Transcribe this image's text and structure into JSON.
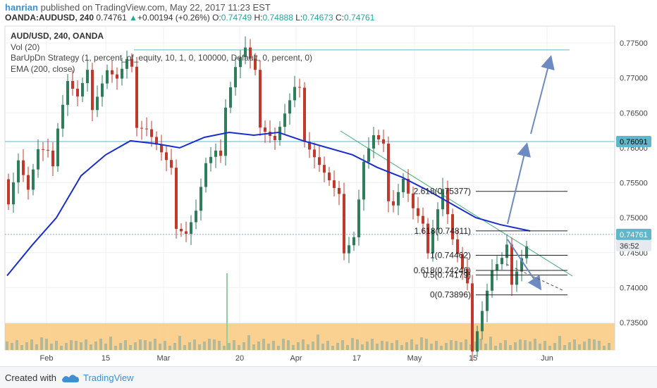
{
  "header": {
    "author": "hanrian",
    "published_text": "published on TradingView.com, May 22, 2017 11:23 EST",
    "symbol": "OANDA:AUDUSD, 240",
    "last": "0.74761",
    "change": "+0.00194 (+0.26%)",
    "o_label": "O:",
    "o_value": "0.74749",
    "h_label": "H:",
    "h_value": "0.74888",
    "l_label": "L:",
    "l_value": "0.74673",
    "c_label": "C:",
    "c_value": "0.74761",
    "up_arrow": "▲"
  },
  "legend": {
    "title": "AUD/USD, 240, OANDA",
    "vol": "Vol (20)",
    "strategy": "BarUpDn Strategy (1, percent_of_equity, 10, 1, 0, 100000, Default, 0, percent, 0)",
    "ema": "EMA (200, close)"
  },
  "footer": {
    "created_with": "Created with",
    "brand": "TradingView"
  },
  "colors": {
    "ema": "#1a2ecc",
    "candle_up": "#2e7d5b",
    "candle_down": "#c0392b",
    "volume_band": "#f9c97d",
    "horizontal_line": "#5fb8c9",
    "trendline": "#3daa74",
    "arrow": "#6d8bc2",
    "fib_line": "#222222",
    "price_badge": "#5fb8c9",
    "timer_badge": "#e6e9ee"
  },
  "chart_data": {
    "type": "candlestick",
    "x_ticks": [
      "Feb",
      "15",
      "Mar",
      "20",
      "Apr",
      "17",
      "May",
      "15",
      "Jun"
    ],
    "y_ticks": [
      "0.77500",
      "0.77000",
      "0.76500",
      "0.76000",
      "0.75500",
      "0.75000",
      "0.74500",
      "0.74000",
      "0.73500"
    ],
    "ylim": [
      0.731,
      0.7765
    ],
    "last_price_badge": "0.74761",
    "timer_badge": "36:52",
    "level_badge": "0.76091",
    "horizontal_levels": [
      0.7609,
      0.774
    ],
    "fib_levels": [
      {
        "label": "2.618(0.75377)",
        "value": 0.75377
      },
      {
        "label": "1.618(0.74811)",
        "value": 0.74811
      },
      {
        "label": "1(0.74462)",
        "value": 0.74462
      },
      {
        "label": "0.618(0.74246)",
        "value": 0.74246
      },
      {
        "label": "0.5(0.74179)",
        "value": 0.74179
      },
      {
        "label": "0(0.73896)",
        "value": 0.73896
      }
    ],
    "price_path": [
      [
        0,
        0.7555
      ],
      [
        2,
        0.76
      ],
      [
        4,
        0.754
      ],
      [
        6,
        0.758
      ],
      [
        8,
        0.756
      ],
      [
        10,
        0.765
      ],
      [
        12,
        0.77
      ],
      [
        14,
        0.766
      ],
      [
        16,
        0.768
      ],
      [
        18,
        0.77
      ],
      [
        20,
        0.772
      ],
      [
        22,
        0.769
      ],
      [
        24,
        0.77
      ],
      [
        26,
        0.766
      ],
      [
        28,
        0.764
      ],
      [
        30,
        0.76
      ],
      [
        32,
        0.756
      ],
      [
        34,
        0.752
      ],
      [
        36,
        0.7495
      ],
      [
        38,
        0.751
      ],
      [
        40,
        0.756
      ],
      [
        42,
        0.756
      ],
      [
        44,
        0.768
      ],
      [
        46,
        0.772
      ],
      [
        48,
        0.773
      ],
      [
        50,
        0.768
      ],
      [
        52,
        0.765
      ],
      [
        54,
        0.762
      ],
      [
        56,
        0.764
      ],
      [
        58,
        0.766
      ],
      [
        60,
        0.764
      ],
      [
        62,
        0.76
      ],
      [
        64,
        0.756
      ],
      [
        66,
        0.752
      ],
      [
        68,
        0.7485
      ],
      [
        70,
        0.749
      ],
      [
        72,
        0.758
      ],
      [
        74,
        0.76
      ],
      [
        76,
        0.757
      ],
      [
        78,
        0.754
      ],
      [
        80,
        0.756
      ],
      [
        82,
        0.75
      ],
      [
        84,
        0.746
      ],
      [
        86,
        0.751
      ],
      [
        88,
        0.755
      ],
      [
        90,
        0.746
      ],
      [
        92,
        0.74
      ],
      [
        94,
        0.734
      ],
      [
        96,
        0.738
      ],
      [
        98,
        0.742
      ],
      [
        100,
        0.742
      ],
      [
        102,
        0.744
      ],
      [
        104,
        0.746
      ],
      [
        106,
        0.7476
      ]
    ],
    "ema_path": [
      [
        0,
        0.7417
      ],
      [
        5,
        0.746
      ],
      [
        10,
        0.75
      ],
      [
        15,
        0.756
      ],
      [
        20,
        0.759
      ],
      [
        25,
        0.761
      ],
      [
        30,
        0.7606
      ],
      [
        35,
        0.76
      ],
      [
        40,
        0.7615
      ],
      [
        45,
        0.7622
      ],
      [
        50,
        0.7618
      ],
      [
        55,
        0.7622
      ],
      [
        60,
        0.761
      ],
      [
        65,
        0.76
      ],
      [
        70,
        0.759
      ],
      [
        75,
        0.7572
      ],
      [
        80,
        0.7558
      ],
      [
        85,
        0.754
      ],
      [
        90,
        0.752
      ],
      [
        95,
        0.75
      ],
      [
        100,
        0.749
      ],
      [
        106,
        0.7481
      ]
    ]
  }
}
